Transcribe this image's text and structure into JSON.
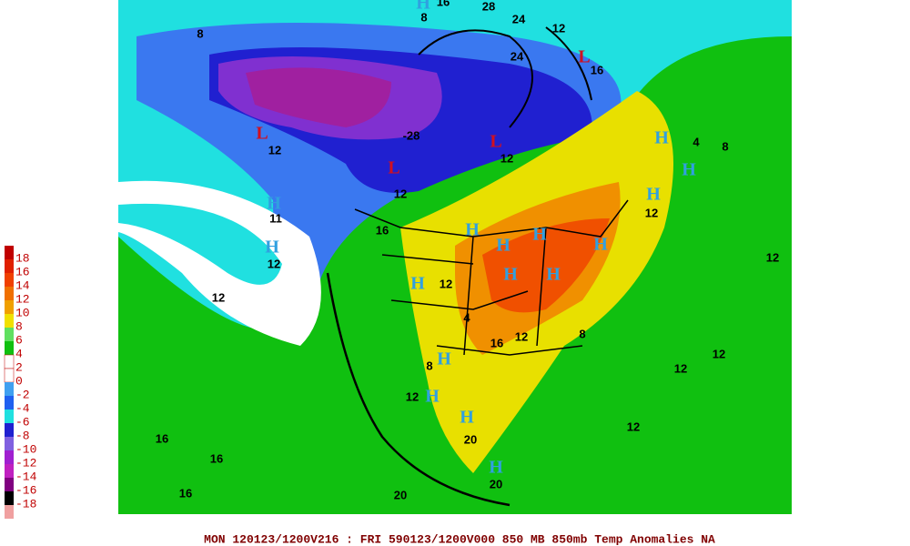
{
  "legend": {
    "labels": [
      "18",
      "16",
      "14",
      "12",
      "10",
      "8",
      "6",
      "4",
      "2",
      "0",
      "-2",
      "-4",
      "-6",
      "-8",
      "-10",
      "-12",
      "-14",
      "-16",
      "-18"
    ]
  },
  "caption": "MON 120123/1200V216 : FRI 590123/1200V000  850 MB 850mb Temp Anomalies NA",
  "map_labels": [
    "H",
    "8",
    "16",
    "28",
    "24",
    "24",
    "8",
    "12",
    "L",
    "16",
    "L",
    "12",
    "-28",
    "L",
    "12",
    "L",
    "12",
    "H",
    "11",
    "H",
    "12",
    "4",
    "8",
    "H",
    "H",
    "H",
    "12",
    "H",
    "H",
    "H",
    "H",
    "H",
    "H",
    "12",
    "16",
    "12",
    "H",
    "H",
    "8",
    "12",
    "H",
    "H",
    "20",
    "H",
    "20",
    "12",
    "12",
    "12",
    "16",
    "16",
    "12",
    "20",
    "12",
    "16",
    "16",
    "8",
    "4"
  ]
}
